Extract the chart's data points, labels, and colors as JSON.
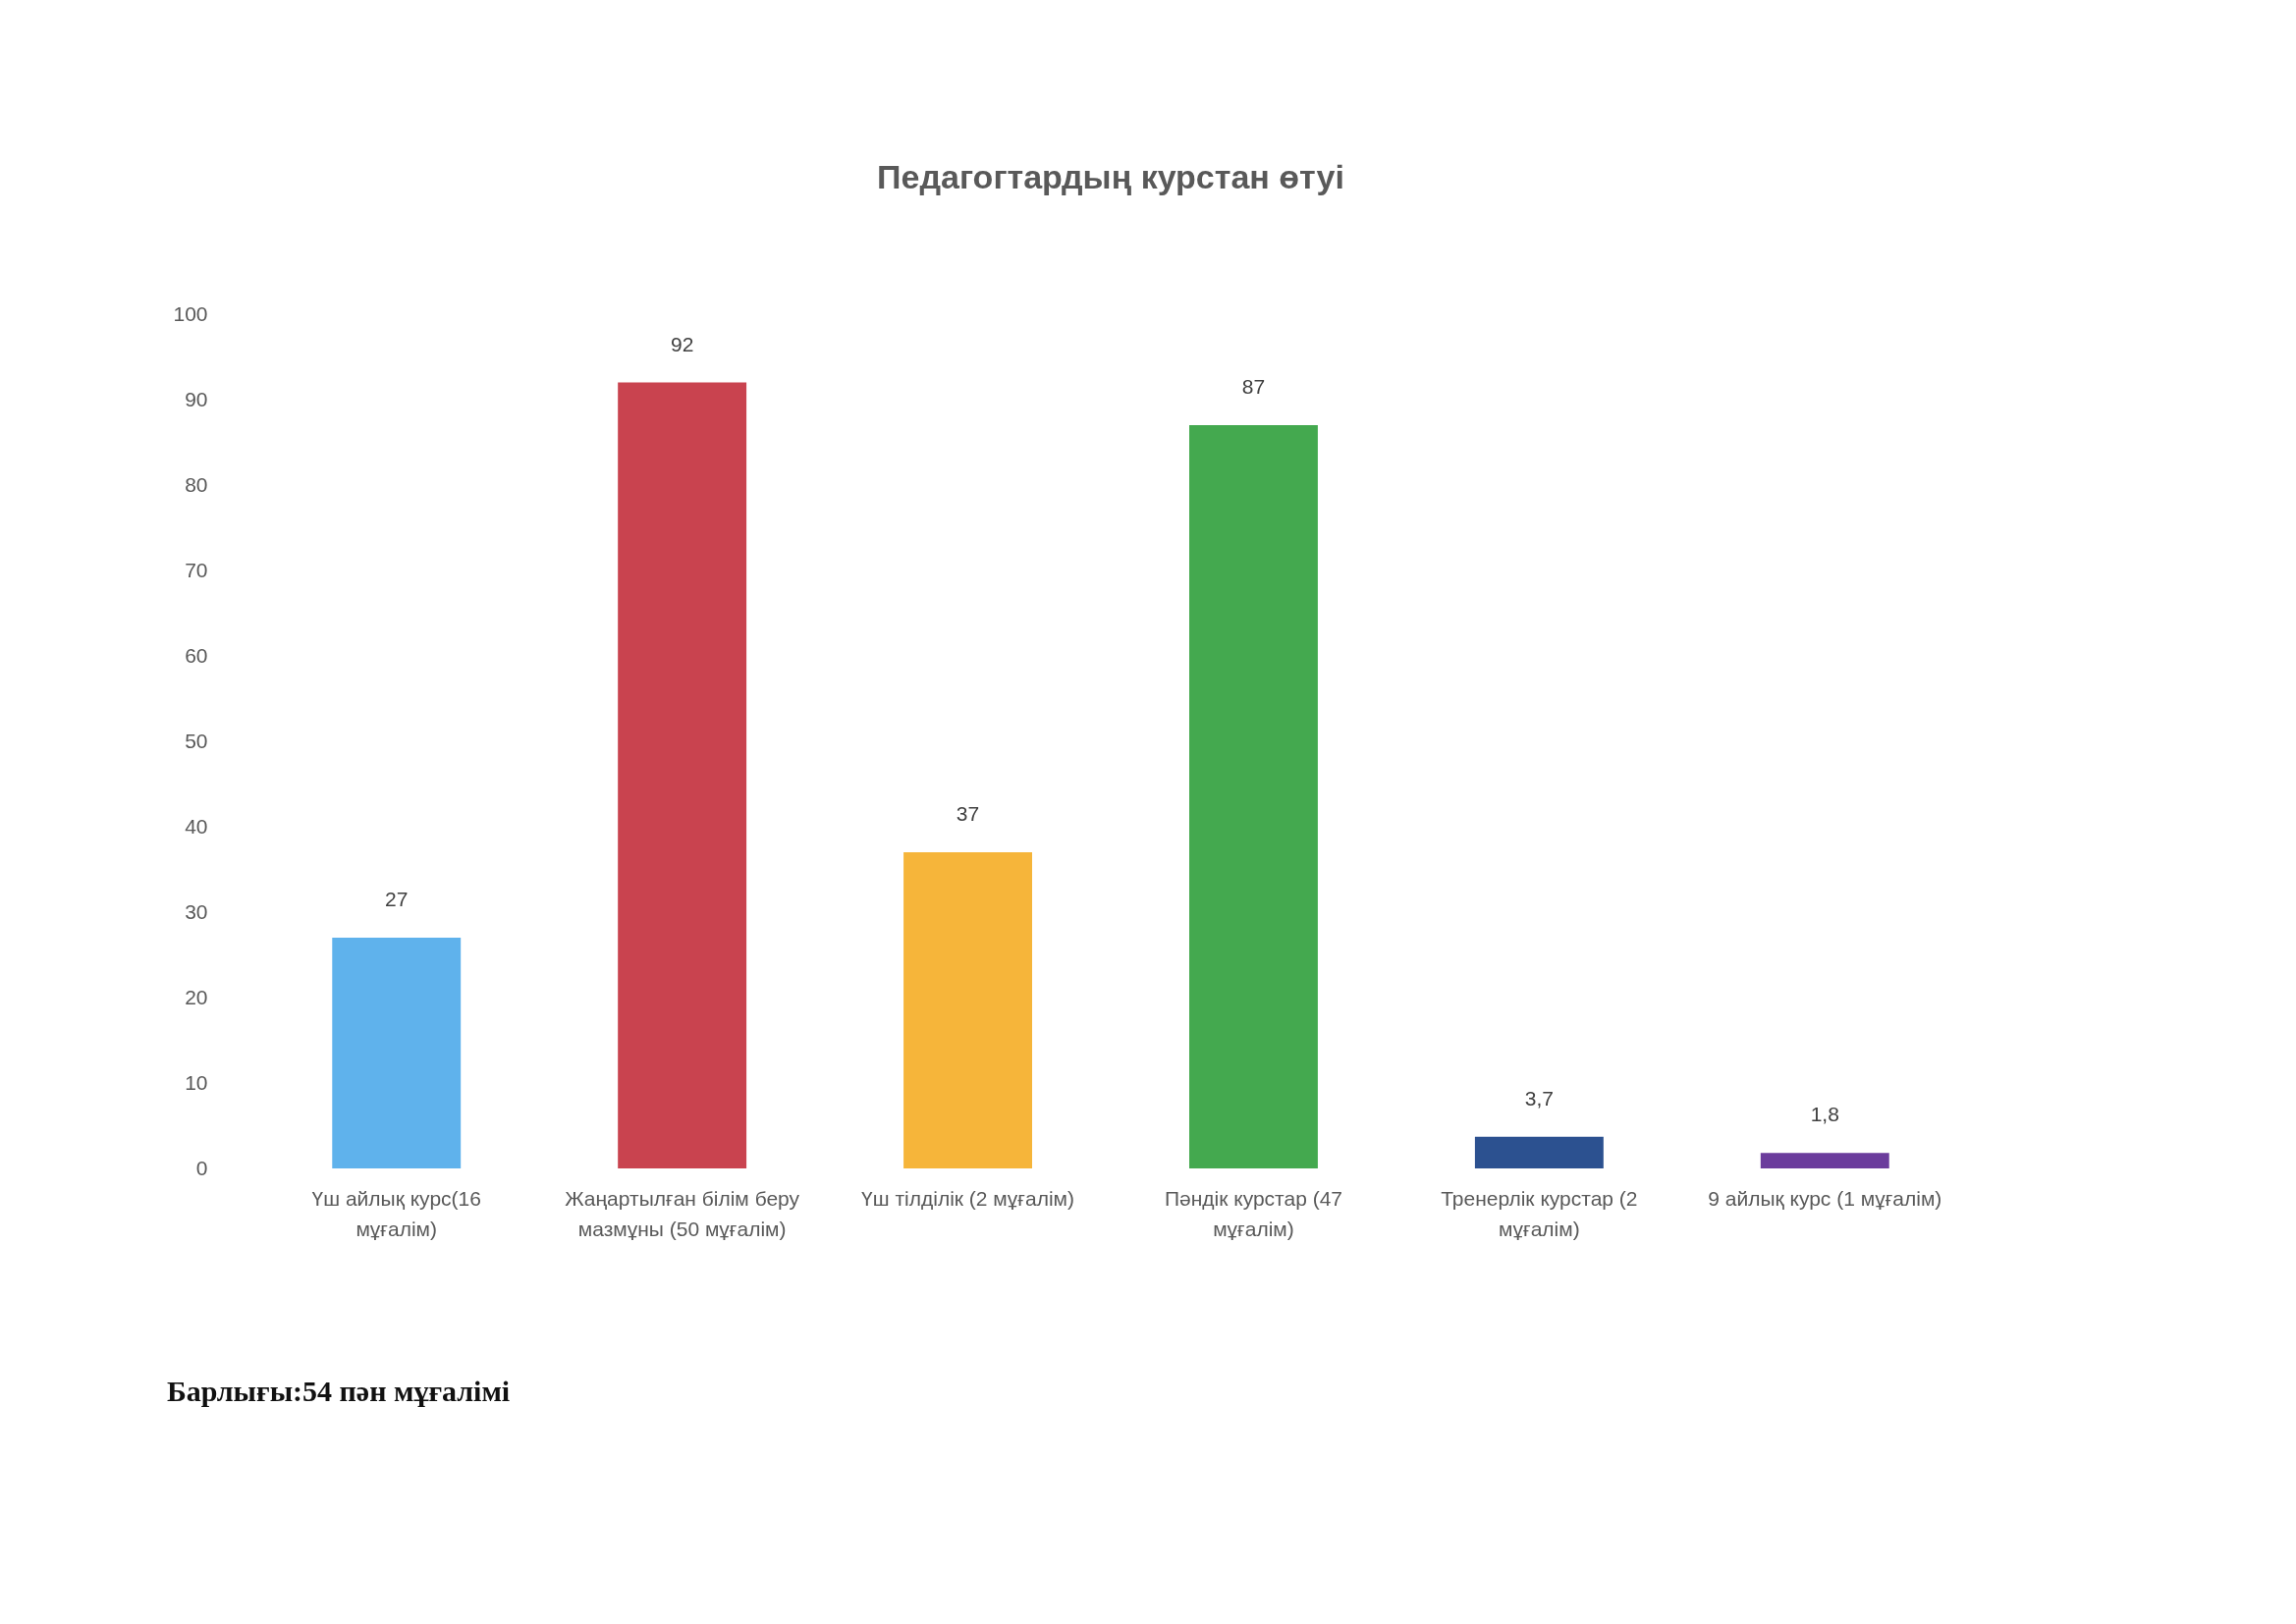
{
  "chart_data": {
    "type": "bar",
    "title": "Педагогтардың курстан өтуі",
    "categories": [
      "Үш айлық курс(16 мұғалім)",
      "Жаңартылған білім беру мазмұны (50 мұғалім)",
      "Үш тілділік (2 мұғалім)",
      "Пәндік курстар (47 мұғалім)",
      "Тренерлік курстар (2 мұғалім)",
      "9 айлық курс (1 мұғалім)"
    ],
    "values": [
      27,
      92,
      37,
      87,
      3.7,
      1.8
    ],
    "value_labels": [
      "27",
      "92",
      "37",
      "87",
      "3,7",
      "1,8"
    ],
    "colors": [
      "#5fb2ec",
      "#c9434f",
      "#f6b53a",
      "#44a94f",
      "#2c5190",
      "#6b3c9c"
    ],
    "ylim": [
      0,
      100
    ],
    "yticks": [
      0,
      10,
      20,
      30,
      40,
      50,
      60,
      70,
      80,
      90,
      100
    ],
    "grid": false,
    "annotations": [
      "Барлығы:54 пән мұғалімі"
    ]
  }
}
